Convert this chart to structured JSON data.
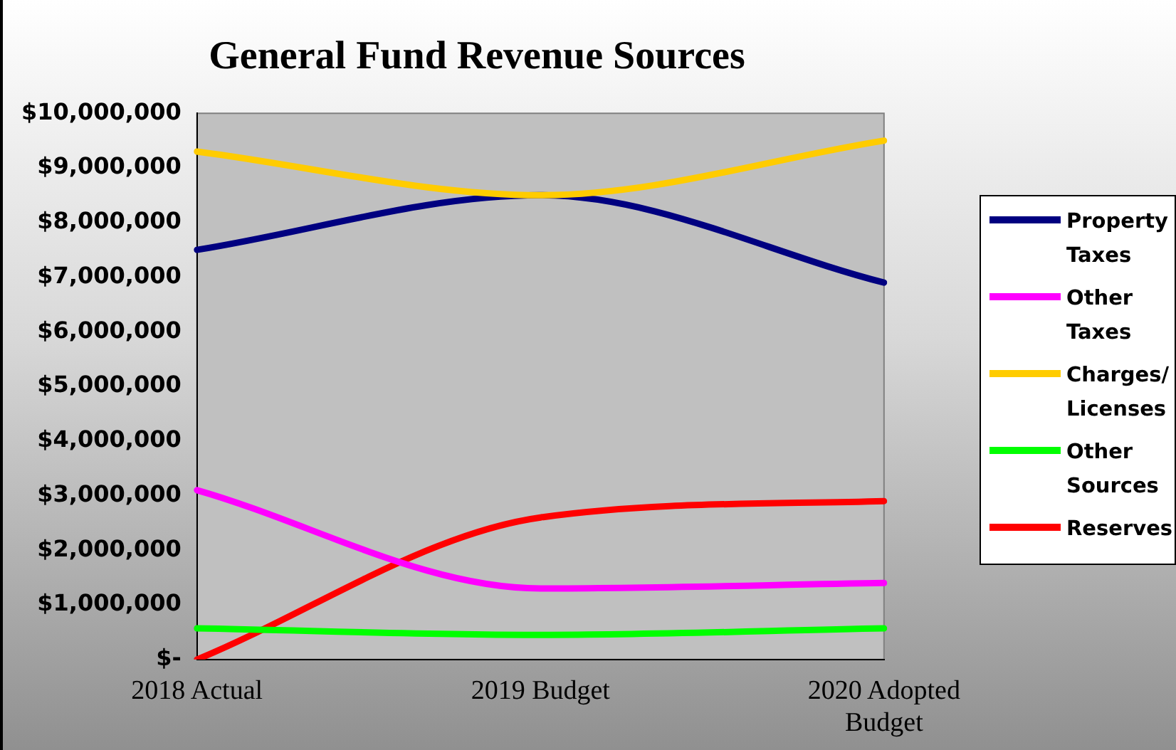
{
  "chart_data": {
    "type": "line",
    "title": "General Fund Revenue Sources",
    "categories": [
      "2018 Actual",
      "2019 Budget",
      "2020 Adopted Budget"
    ],
    "series": [
      {
        "name": "Property Taxes",
        "color": "#000080",
        "values": [
          7500000,
          8500000,
          6900000
        ]
      },
      {
        "name": "Other Taxes",
        "color": "#ff00ff",
        "values": [
          3100000,
          1300000,
          1400000
        ]
      },
      {
        "name": "Charges/ Licenses",
        "color": "#ffcc00",
        "values": [
          9300000,
          8500000,
          9500000
        ]
      },
      {
        "name": "Other Sources",
        "color": "#00ff00",
        "values": [
          570000,
          450000,
          570000
        ]
      },
      {
        "name": "Reserves",
        "color": "#ff0000",
        "values": [
          0,
          2600000,
          2900000
        ]
      }
    ],
    "ylim": [
      0,
      10000000
    ],
    "yticks": [
      {
        "value": 0,
        "label": "$-"
      },
      {
        "value": 1000000,
        "label": "$1,000,000"
      },
      {
        "value": 2000000,
        "label": "$2,000,000"
      },
      {
        "value": 3000000,
        "label": "$3,000,000"
      },
      {
        "value": 4000000,
        "label": "$4,000,000"
      },
      {
        "value": 5000000,
        "label": "$5,000,000"
      },
      {
        "value": 6000000,
        "label": "$6,000,000"
      },
      {
        "value": 7000000,
        "label": "$7,000,000"
      },
      {
        "value": 8000000,
        "label": "$8,000,000"
      },
      {
        "value": 9000000,
        "label": "$9,000,000"
      },
      {
        "value": 10000000,
        "label": "$10,000,000"
      }
    ],
    "grid": false,
    "legend": "right",
    "marker": "none",
    "line_style": "solid"
  }
}
